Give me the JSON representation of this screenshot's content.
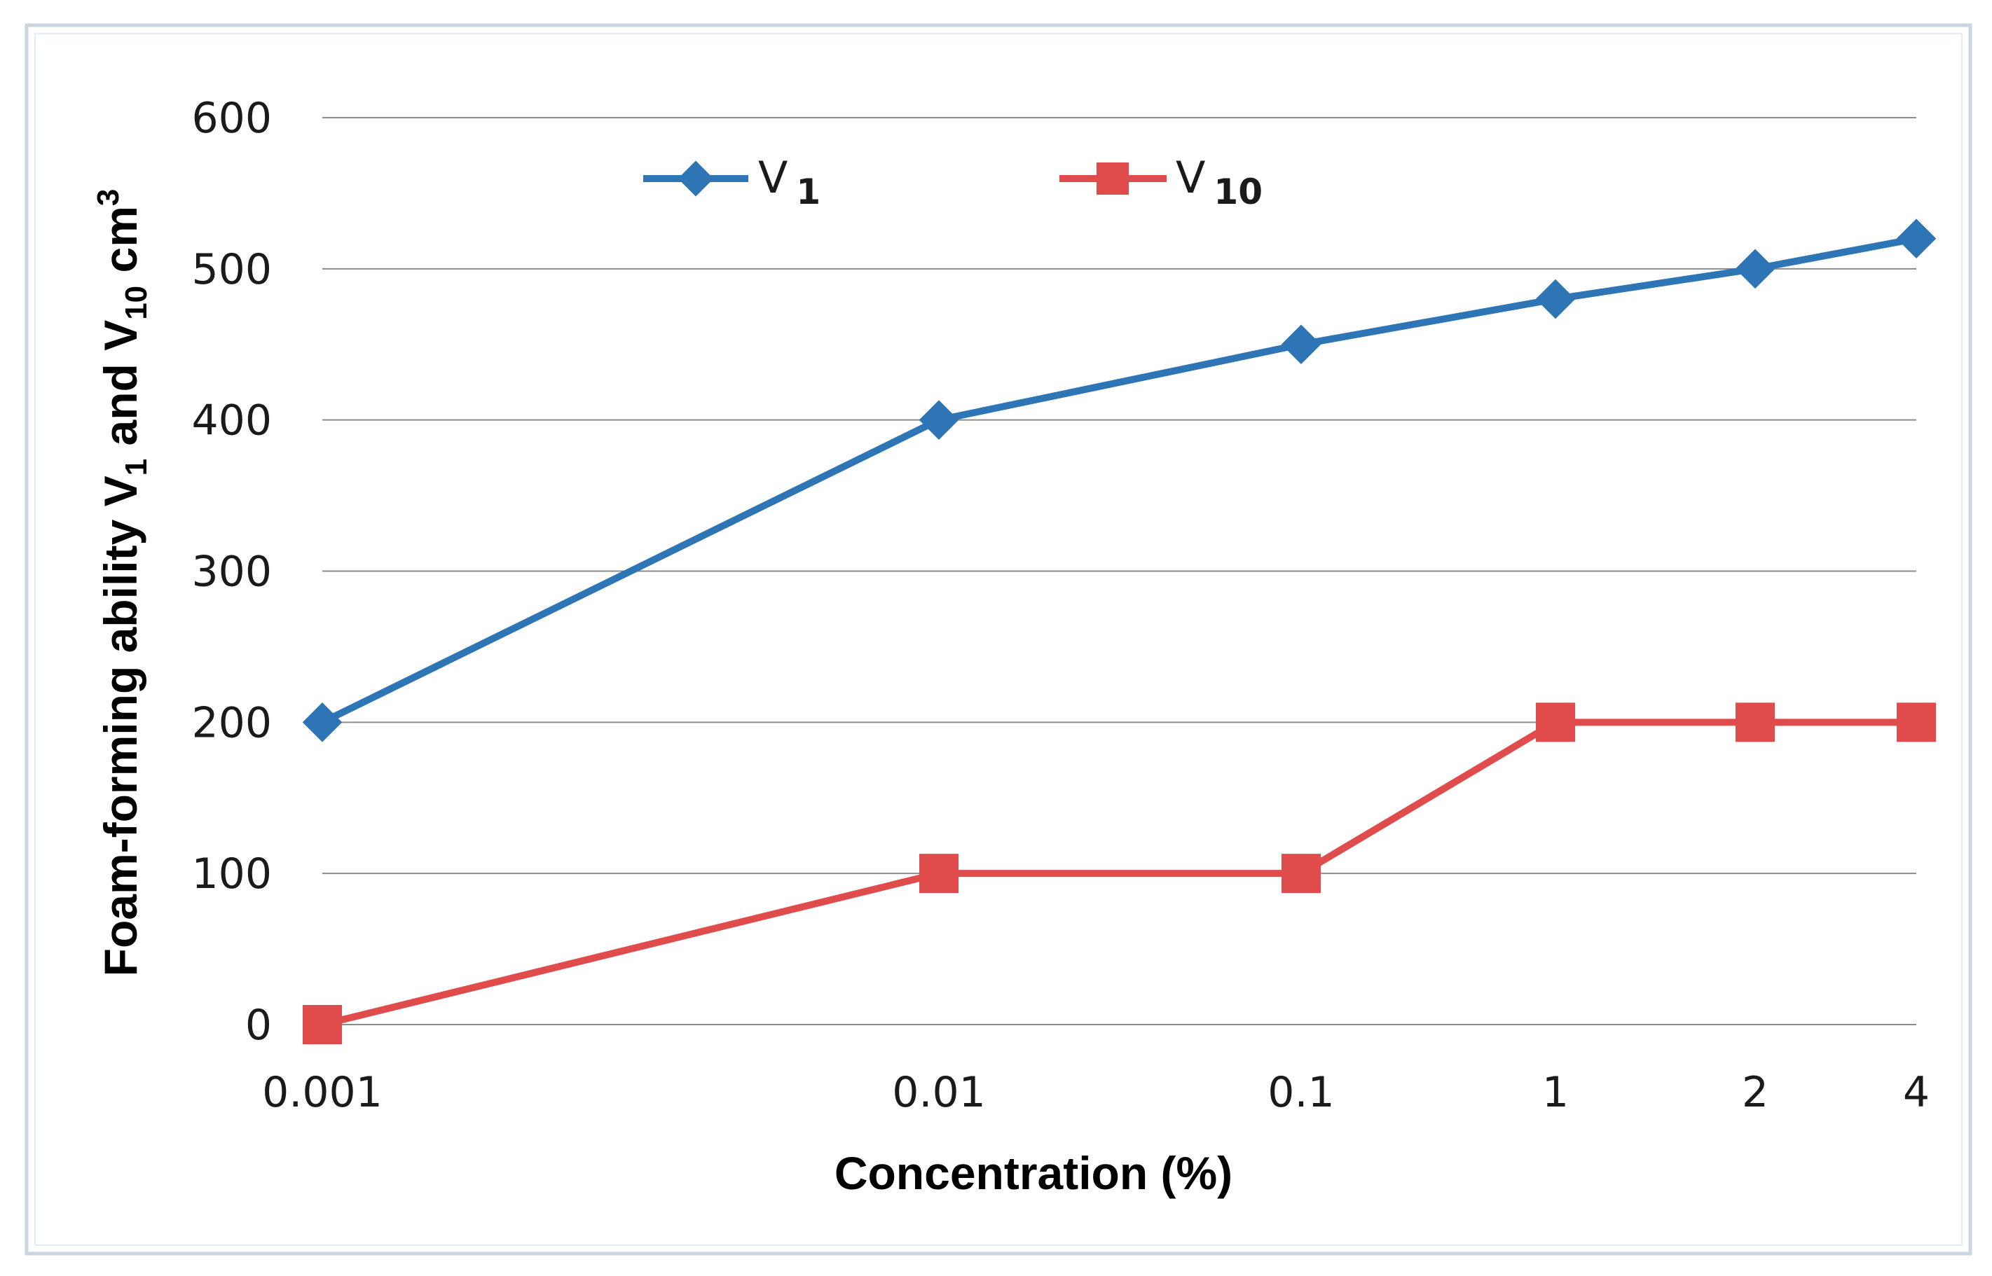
{
  "chart_data": {
    "type": "line",
    "title": "",
    "xlabel": "Concentration (%)",
    "ylabel": "Foam-forming ability V1 and V10 cm3",
    "ylabel_parts": {
      "prefix": "Foam-forming ability V",
      "sub1": "1",
      "mid": " and V",
      "sub2": "10",
      "unit": " cm",
      "sup": "3"
    },
    "x_scale": "categorical",
    "categories": [
      "0.001",
      "0.01",
      "0.1",
      "1",
      "2",
      "4"
    ],
    "ylim": [
      0,
      600
    ],
    "yticks": [
      "0",
      "100",
      "200",
      "300",
      "400",
      "500",
      "600"
    ],
    "grid": true,
    "legend_position": "top-left inside plot",
    "series": [
      {
        "name": "V1",
        "legend_base": "V",
        "legend_sub": "1",
        "marker": "diamond",
        "color": "#2e75b6",
        "values": [
          200,
          400,
          450,
          480,
          500,
          520
        ]
      },
      {
        "name": "V10",
        "legend_base": "V",
        "legend_sub": "10",
        "marker": "square",
        "color": "#e04c4c",
        "values": [
          0,
          100,
          100,
          200,
          200,
          200
        ]
      }
    ]
  }
}
